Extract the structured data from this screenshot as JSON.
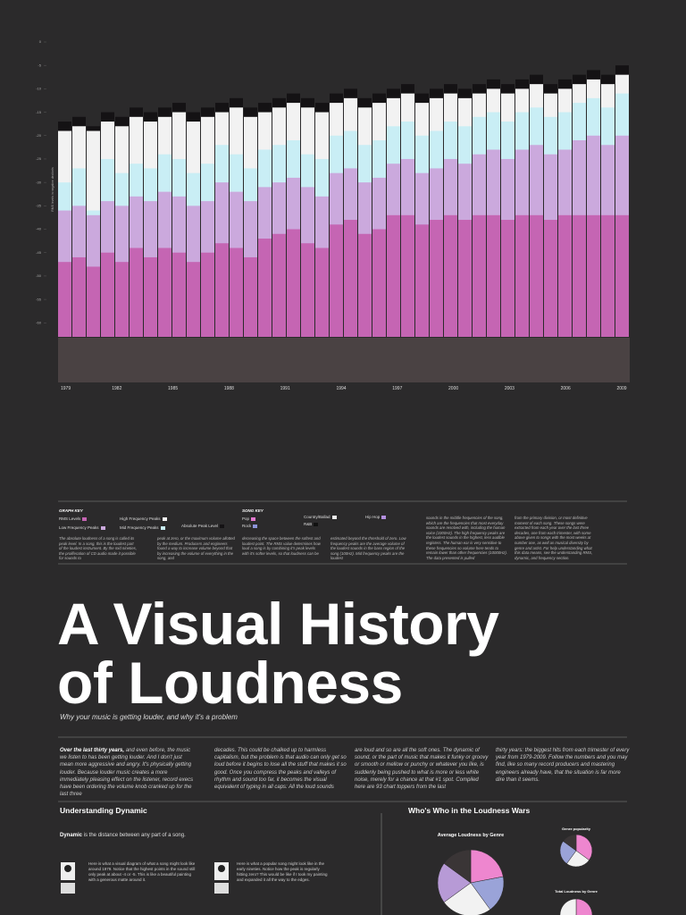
{
  "chart_data": {
    "type": "bar",
    "y_label": "RMS levels in negative decibels",
    "ylim": [
      -63,
      0
    ],
    "yticks": [
      0,
      -5,
      -10,
      -15,
      -20,
      -25,
      -30,
      -35,
      -40,
      -45,
      -50,
      -55,
      -60
    ],
    "years": [
      "1979",
      "1982",
      "1985",
      "1988",
      "1991",
      "1994",
      "1997",
      "2000",
      "2003",
      "2006",
      "2009"
    ],
    "series": [
      {
        "name": "Absolute Peak Level",
        "color": "#141214",
        "values": [
          -17,
          -16,
          -18,
          -15,
          -16,
          -14,
          -15,
          -14,
          -13,
          -15,
          -14,
          -13,
          -12,
          -14,
          -13,
          -12,
          -11,
          -12,
          -13,
          -11,
          -10,
          -12,
          -11,
          -10,
          -9,
          -11,
          -10,
          -9,
          -10,
          -9,
          -8,
          -9,
          -8,
          -7,
          -9,
          -8,
          -7,
          -6,
          -7,
          -5
        ]
      },
      {
        "name": "High Frequency Peaks",
        "color": "#f2f2f2",
        "values": [
          -19,
          -18,
          -19,
          -17,
          -18,
          -16,
          -17,
          -16,
          -15,
          -17,
          -16,
          -15,
          -14,
          -16,
          -15,
          -14,
          -13,
          -14,
          -15,
          -13,
          -12,
          -14,
          -13,
          -12,
          -11,
          -13,
          -12,
          -11,
          -12,
          -11,
          -10,
          -11,
          -10,
          -9,
          -11,
          -10,
          -9,
          -8,
          -9,
          -7
        ]
      },
      {
        "name": "Mid Frequency Peaks",
        "color": "#c9eef5",
        "values": [
          -30,
          -27,
          -36,
          -25,
          -28,
          -26,
          -27,
          -24,
          -25,
          -28,
          -26,
          -22,
          -24,
          -27,
          -23,
          -22,
          -21,
          -24,
          -25,
          -20,
          -19,
          -22,
          -21,
          -18,
          -17,
          -20,
          -19,
          -17,
          -18,
          -16,
          -15,
          -17,
          -15,
          -14,
          -16,
          -15,
          -13,
          -12,
          -14,
          -11
        ]
      },
      {
        "name": "Low Frequency Peaks",
        "color": "#cba9dd",
        "values": [
          -36,
          -35,
          -37,
          -34,
          -35,
          -33,
          -34,
          -32,
          -33,
          -35,
          -34,
          -30,
          -32,
          -34,
          -31,
          -30,
          -29,
          -31,
          -33,
          -28,
          -27,
          -30,
          -29,
          -26,
          -25,
          -28,
          -27,
          -25,
          -26,
          -24,
          -23,
          -25,
          -23,
          -22,
          -24,
          -23,
          -21,
          -20,
          -22,
          -20
        ]
      },
      {
        "name": "RMS Levels",
        "color": "#c565b3",
        "values": [
          -47,
          -46,
          -48,
          -45,
          -47,
          -44,
          -46,
          -44,
          -45,
          -47,
          -45,
          -43,
          -44,
          -46,
          -42,
          -41,
          -40,
          -43,
          -44,
          -39,
          -38,
          -41,
          -40,
          -37,
          -37,
          -39,
          -38,
          -37,
          -38,
          -37,
          -37,
          -38,
          -37,
          -37,
          -38,
          -37,
          -37,
          -37,
          -37,
          -37
        ]
      }
    ]
  },
  "graph_key": "GRAPH KEY",
  "song_key": {
    "title": "SONG KEY",
    "items": [
      {
        "name": "Pop",
        "color": "#e47ad0"
      },
      {
        "name": "Rock",
        "color": "#8c93d8"
      },
      {
        "name": "Country/Ballad",
        "color": "#f0f0f0"
      },
      {
        "name": "R&B",
        "color": "#111111"
      },
      {
        "name": "Hip Hop",
        "color": "#b48fe0"
      }
    ]
  },
  "key_text": [
    "The absolute loudness of a song is called its peak level. In a song, this is the loudest part of the loudest instrument. By the mid nineties, the proliferation of CD audio made it possible for sounds to",
    "peak at zero, or the maximum volume allotted by the medium. Producers and engineers found a way to increase volume beyond that by increasing the volume of everything in the song, and",
    "decreasing the space between the softest and loudest point. The RMS value determines how loud a song is by combining it's peak levels with it's softer levels, so that loudness can be",
    "estimated beyond the threshold of zero. Low frequency peaks are the average volume of the loudest sounds in the bass region of the song (100Hz). Mid frequency peaks are the loudest",
    "sounds in the middle frequencies of the song, which are the frequencies that most everyday sounds are resolved with, including the human voice (1000Hz). The high frequency peaks are the loudest sounds in the highest, less audible registers. The human ear is very sensitive to these frequencies so volume here tends to remain lower than other frequencies (10000Hz). The data presented is pulled",
    "from the primary division, or most definitive moment of each song. These songs were extracted from each year over the last three decades, one from each trimester, with some above given to songs with the most weeks at number one, as well as musical diversity by genre and artist. For help understanding what this data means, see the understanding RMS, dynamic, and frequency section."
  ],
  "title_lines": [
    "A Visual History",
    "of Loudness"
  ],
  "subtitle": "Why your music is getting louder, and why it's a problem",
  "intro_lead": "Over the last thirty years,",
  "intro": [
    " and even before, the music we listen to has been getting louder. And I don't just mean more aggressive and angry. It's physically getting louder. Because louder music creates a more immediately pleasing effect on the listener, record execs have been ordering the volume knob cranked up for the last three",
    "decades. This could be chalked up to harmless capitalism, but the problem is that audio can only get so loud before it begins to lose all the stuff that makes it so good. Once you compress the peaks and valleys of rhythm and sound too far, it becomes the visual equivalent of typing in all caps: All the loud sounds",
    "are loud and so are all the soft ones. The dynamic of sound, or the part of music that makes it funky or groovy or smooth or mellow or punchy or whatever you like, is suddenly being pushed to what is more or less white noise, merely for a chance at that #1 spot. Compiled here are 93 chart toppers from the last",
    "thirty years: the biggest hits from each trimester of every year from 1979-2009. Follow the numbers and you may find, like so many record producers and mastering engineers already have, that the situation is far more dire than it seems."
  ],
  "dynamic": {
    "heading": "Understanding Dynamic",
    "lead_bold": "Dynamic",
    "lead": " is the distance between any part of a song.",
    "captions": [
      "Here is what a visual diagram of what a song might look like around 1979. Notice that the highest points in the sound still only peak at about -4 or -5. This is like a beautiful painting with a generous matte around it.",
      "Here is what a popular song might look like in the early nineties. Notice how the peak is regularly hitting zero? This would be like if I took my painting and expanded it all the way to the edges."
    ]
  },
  "whos_who": {
    "heading": "Who's Who in the Loudness Wars",
    "charts": [
      {
        "type": "pie",
        "title": "Average Loudness by Genre",
        "values": [
          22,
          18,
          25,
          20,
          15
        ],
        "colors": [
          "#ee86cf",
          "#9aa3d8",
          "#f2f2f2",
          "#b79ad6",
          "#3a3536"
        ]
      },
      {
        "type": "pie",
        "title": "Genre popularity",
        "values": [
          35,
          25,
          25,
          15
        ],
        "colors": [
          "#ee86cf",
          "#f2f2f2",
          "#9aa3d8",
          "#3a3536"
        ]
      },
      {
        "type": "pie",
        "title": "Total Loudness by Genre",
        "values": [
          40,
          30,
          30
        ],
        "colors": [
          "#ee86cf",
          "#b79ad6",
          "#f2f2f2"
        ]
      }
    ]
  }
}
